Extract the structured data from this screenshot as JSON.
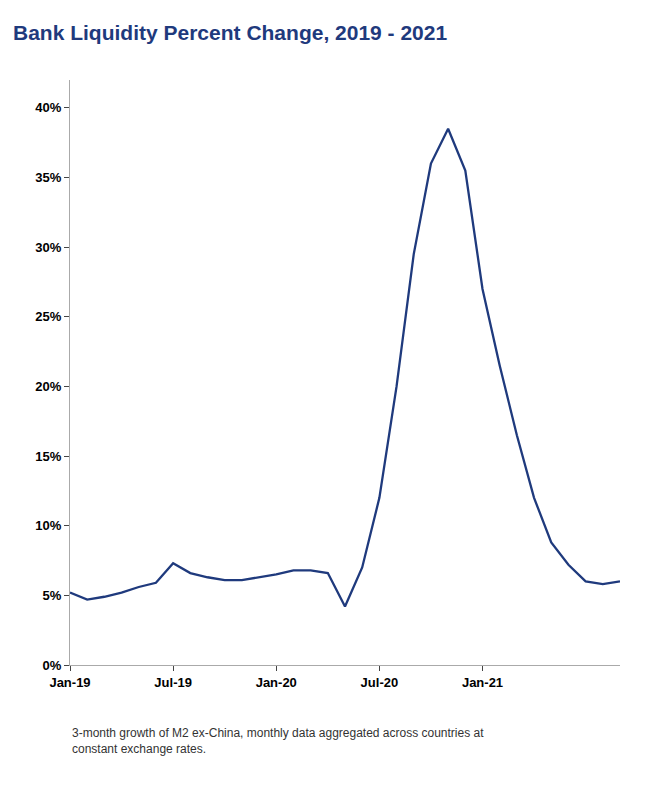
{
  "chart_data": {
    "type": "line",
    "title": "Bank Liquidity Percent Change, 2019 - 2021",
    "color": "#1F3A7D",
    "categories": [
      "Jan-19",
      null,
      null,
      null,
      null,
      null,
      "Jul-19",
      null,
      null,
      null,
      null,
      null,
      "Jan-20",
      null,
      null,
      null,
      null,
      null,
      "Jul-20",
      null,
      null,
      null,
      null,
      null,
      "Jan-21",
      null,
      null,
      null,
      null,
      null,
      null,
      null,
      null
    ],
    "values": [
      0.052,
      0.047,
      0.049,
      0.052,
      0.056,
      0.059,
      0.073,
      0.066,
      0.063,
      0.061,
      0.061,
      0.063,
      0.065,
      0.068,
      0.068,
      0.066,
      0.042,
      0.07,
      0.12,
      0.2,
      0.295,
      0.36,
      0.385,
      0.355,
      0.27,
      0.215,
      0.165,
      0.12,
      0.088,
      0.072,
      0.06,
      0.058,
      0.06
    ],
    "ylim": [
      0.0,
      0.42
    ],
    "yticks": [
      {
        "value": 0.0,
        "label": "0%"
      },
      {
        "value": 0.05,
        "label": "5%"
      },
      {
        "value": 0.1,
        "label": "10%"
      },
      {
        "value": 0.15,
        "label": "15%"
      },
      {
        "value": 0.2,
        "label": "20%"
      },
      {
        "value": 0.25,
        "label": "25%"
      },
      {
        "value": 0.3,
        "label": "30%"
      },
      {
        "value": 0.35,
        "label": "35%"
      },
      {
        "value": 0.4,
        "label": "40%"
      }
    ],
    "grid": false,
    "annotations": [
      "3-month growth of M2 ex-China, monthly data aggregated across countries at\nconstant exchange rates."
    ]
  }
}
